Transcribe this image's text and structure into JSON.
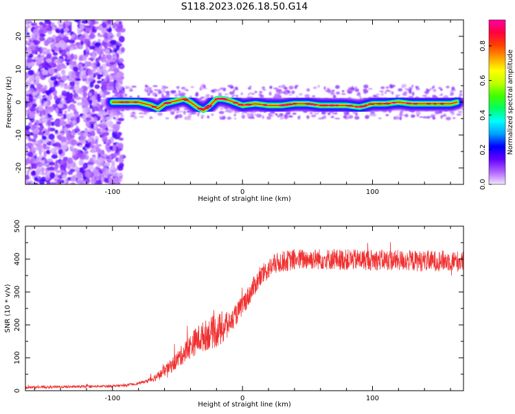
{
  "title": "S118.2023.026.18.50.G14",
  "chart_data": [
    {
      "type": "heatmap",
      "xlabel": "Height of straight line (km)",
      "ylabel": "Frequency (Hz)",
      "xlim": [
        -167,
        170
      ],
      "ylim": [
        -25,
        25
      ],
      "xticks": [
        -100,
        0,
        100
      ],
      "yticks": [
        -20,
        -10,
        0,
        10,
        20
      ],
      "colorbar": {
        "label": "Normalized spectral amplitude",
        "range": [
          0,
          0.95
        ],
        "ticks": [
          0.0,
          0.2,
          0.4,
          0.6,
          0.8
        ],
        "tick_labels": [
          "0.0",
          "0.2",
          "0.4",
          "0.6",
          "0.8"
        ],
        "colors": [
          "#f0e6ff",
          "#b060ff",
          "#6000ff",
          "#0000ff",
          "#00a0ff",
          "#00ffff",
          "#00ff60",
          "#40ff00",
          "#c0ff00",
          "#ffff00",
          "#ffa000",
          "#ff4000",
          "#ff0040",
          "#ff00a0"
        ]
      },
      "noise_region_x": [
        -167,
        -100
      ],
      "ridge": {
        "x": [
          -100,
          -90,
          -80,
          -70,
          -65,
          -60,
          -55,
          -50,
          -45,
          -40,
          -35,
          -30,
          -25,
          -20,
          -15,
          -10,
          0,
          10,
          20,
          30,
          40,
          50,
          60,
          70,
          80,
          90,
          100,
          110,
          120,
          130,
          140,
          150,
          160,
          165
        ],
        "y": [
          0,
          0,
          0,
          -1,
          -2,
          -0.5,
          0,
          0.5,
          1,
          0,
          -1.5,
          -2.5,
          -1,
          1,
          1,
          0.5,
          -1,
          -0.5,
          -1,
          -1,
          -0.5,
          -0.5,
          -1,
          -1,
          -1,
          -1.5,
          -0.5,
          -0.5,
          0,
          -0.5,
          -0.5,
          -0.5,
          -0.5,
          0
        ],
        "peak_amplitude": 0.9
      }
    },
    {
      "type": "line",
      "xlabel": "Height of straight line (km)",
      "ylabel": "SNR (10 * v/v)",
      "xlim": [
        -167,
        170
      ],
      "ylim": [
        0,
        500
      ],
      "xticks": [
        -100,
        0,
        100
      ],
      "yticks": [
        0,
        100,
        200,
        300,
        400,
        500
      ],
      "color": "#f03030",
      "series": [
        {
          "x": [
            -167,
            -150,
            -130,
            -110,
            -90,
            -80,
            -75,
            -70,
            -65,
            -60,
            -55,
            -50,
            -45,
            -40,
            -35,
            -30,
            -25,
            -20,
            -15,
            -10,
            -5,
            0,
            5,
            10,
            15,
            20,
            25,
            30,
            40,
            50,
            60,
            80,
            100,
            120,
            140,
            160,
            170
          ],
          "y": [
            10,
            11,
            12,
            13,
            16,
            22,
            28,
            35,
            45,
            60,
            75,
            95,
            115,
            135,
            155,
            165,
            175,
            180,
            190,
            205,
            230,
            260,
            290,
            325,
            350,
            370,
            385,
            392,
            398,
            400,
            400,
            398,
            398,
            396,
            394,
            395,
            392
          ]
        }
      ]
    }
  ]
}
